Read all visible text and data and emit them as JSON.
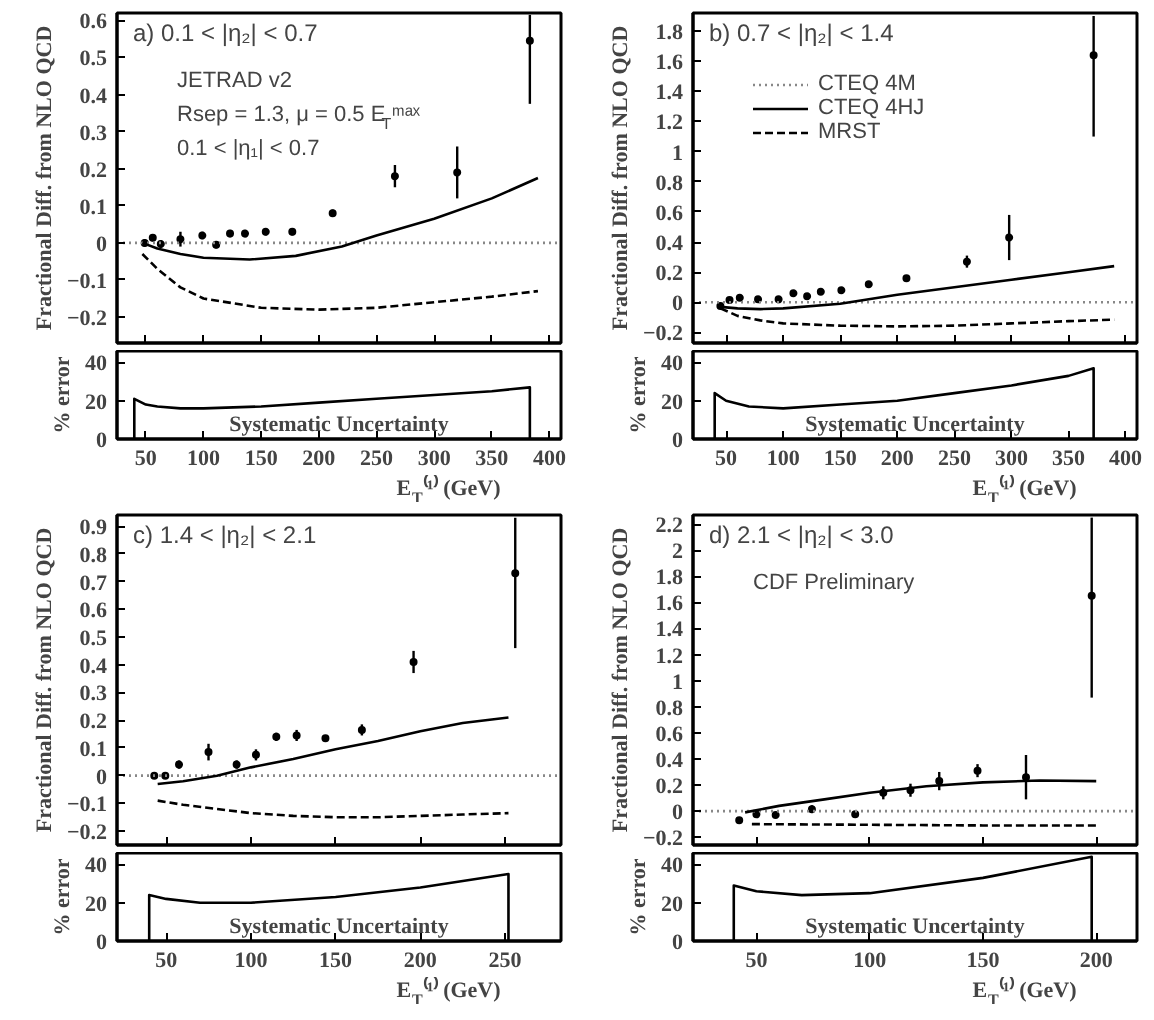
{
  "chart_data": [
    {
      "type": "scatter",
      "ylabel": "Fractional Diff. from NLO QCD",
      "annotations": [
        "a) 0.1 < |η₂| < 0.7",
        "JETRAD v2",
        "Rsep = 1.3, μ = 0.5 E$_{T}$ᵐᵃˣ",
        "0.1 < |η₁| < 0.7"
      ],
      "xlim": [
        25,
        410
      ],
      "ylim": [
        -0.27,
        0.62
      ],
      "xticks": [
        50,
        100,
        150,
        200,
        250,
        300,
        350,
        400
      ],
      "yticks": [
        -0.2,
        -0.1,
        0,
        0.1,
        0.2,
        0.3,
        0.4,
        0.5,
        0.6
      ],
      "tick_labels": "y",
      "legend": false,
      "series": [
        {
          "type": "scatter",
          "color": "#000000",
          "marker": "circle",
          "x": [
            49,
            56,
            63,
            80,
            99,
            111,
            123,
            136,
            154,
            177,
            212,
            266,
            320,
            383
          ],
          "values": [
            0,
            0.014,
            -0.003,
            0.01,
            0.02,
            -0.005,
            0.025,
            0.025,
            0.03,
            0.03,
            0.08,
            0.18,
            0.19,
            0.545
          ],
          "errors": [
            0.01,
            0.01,
            0.01,
            0.02,
            0.01,
            0.01,
            0.01,
            0.01,
            0.01,
            0.01,
            0.01,
            0.03,
            0.07,
            [
              0.375,
              0.615
            ]
          ]
        },
        {
          "type": "line",
          "color": "#888888",
          "line_style": "dotted",
          "x": [
            25,
            410
          ],
          "values": [
            0,
            0
          ]
        },
        {
          "type": "line",
          "color": "#000000",
          "line_style": "solid",
          "x": [
            47,
            60,
            80,
            100,
            140,
            180,
            220,
            250,
            300,
            350,
            390
          ],
          "values": [
            0,
            -0.015,
            -0.03,
            -0.04,
            -0.045,
            -0.035,
            -0.01,
            0.02,
            0.065,
            0.12,
            0.175
          ]
        },
        {
          "type": "line",
          "color": "#000000",
          "line_style": "dashed",
          "x": [
            47,
            60,
            80,
            100,
            150,
            200,
            250,
            300,
            350,
            390
          ],
          "values": [
            -0.03,
            -0.07,
            -0.12,
            -0.15,
            -0.175,
            -0.18,
            -0.175,
            -0.16,
            -0.145,
            -0.13
          ]
        }
      ]
    },
    {
      "type": "line",
      "ylabel": "% error",
      "xlabel": "E$_{T}$⁽¹⁾ (GeV)",
      "annotations": [
        "Systematic Uncertainty"
      ],
      "xlim": [
        25,
        410
      ],
      "ylim": [
        0,
        46
      ],
      "xticks": [
        50,
        100,
        150,
        200,
        250,
        300,
        350,
        400
      ],
      "yticks": [
        0,
        20,
        40
      ],
      "color": "#000000",
      "x": [
        40,
        40,
        50,
        60,
        80,
        100,
        150,
        200,
        250,
        300,
        350,
        383,
        383
      ],
      "values": [
        0,
        21,
        18,
        17,
        16,
        16,
        17,
        19,
        21,
        23,
        25,
        27,
        0
      ]
    },
    {
      "type": "scatter",
      "ylabel": "Fractional Diff. from NLO QCD",
      "annotations": [
        "b) 0.7 < |η₂| < 1.4"
      ],
      "xlim": [
        21,
        410
      ],
      "ylim": [
        -0.27,
        1.92
      ],
      "xticks": [
        50,
        100,
        150,
        200,
        250,
        300,
        350,
        400
      ],
      "yticks": [
        -0.2,
        0,
        0.2,
        0.4,
        0.6,
        0.8,
        1,
        1.2,
        1.4,
        1.6,
        1.8
      ],
      "tick_labels": "y",
      "legend": "top left",
      "series": [
        {
          "type": "scatter",
          "color": "#000000",
          "marker": "circle",
          "x": [
            45,
            53,
            62,
            78,
            96,
            109,
            121,
            133,
            151,
            175,
            208,
            261,
            298,
            372
          ],
          "values": [
            -0.025,
            0.015,
            0.03,
            0.02,
            0.02,
            0.06,
            0.04,
            0.07,
            0.08,
            0.12,
            0.16,
            0.27,
            0.43,
            1.64
          ],
          "errors": [
            0.01,
            0.01,
            0.01,
            0.01,
            0.01,
            0.01,
            0.01,
            0.01,
            0.01,
            0.01,
            0.01,
            0.04,
            0.15,
            [
              1.1,
              1.9
            ]
          ]
        },
        {
          "type": "line",
          "name": "CTEQ 4M",
          "color": "#888888",
          "line_style": "dotted",
          "x": [
            21,
            410
          ],
          "values": [
            0,
            0
          ]
        },
        {
          "type": "line",
          "name": "CTEQ 4HJ",
          "color": "#000000",
          "line_style": "solid",
          "x": [
            45,
            60,
            80,
            100,
            150,
            200,
            250,
            300,
            350,
            390
          ],
          "values": [
            -0.03,
            -0.04,
            -0.045,
            -0.04,
            -0.01,
            0.05,
            0.1,
            0.15,
            0.2,
            0.24
          ]
        },
        {
          "type": "line",
          "name": "MRST",
          "color": "#000000",
          "line_style": "dashed",
          "x": [
            45,
            60,
            80,
            100,
            150,
            200,
            250,
            300,
            350,
            390
          ],
          "values": [
            -0.04,
            -0.09,
            -0.12,
            -0.14,
            -0.155,
            -0.16,
            -0.155,
            -0.14,
            -0.125,
            -0.115
          ]
        }
      ]
    },
    {
      "type": "line",
      "ylabel": "% error",
      "xlabel": "E$_{T}$⁽¹⁾ (GeV)",
      "annotations": [
        "Systematic Uncertainty"
      ],
      "xlim": [
        21,
        410
      ],
      "ylim": [
        0,
        46
      ],
      "xticks": [
        50,
        100,
        150,
        200,
        250,
        300,
        350,
        400
      ],
      "yticks": [
        0,
        20,
        40
      ],
      "color": "#000000",
      "x": [
        40,
        40,
        50,
        70,
        100,
        150,
        200,
        250,
        300,
        350,
        372,
        372
      ],
      "values": [
        0,
        24,
        20,
        17,
        16,
        18,
        20,
        24,
        28,
        33,
        37,
        0
      ]
    },
    {
      "type": "scatter",
      "ylabel": "Fractional Diff. from NLO QCD",
      "annotations": [
        "c) 1.4 < |η₂| < 2.1"
      ],
      "xlim": [
        21,
        283
      ],
      "ylim": [
        -0.25,
        0.94
      ],
      "xticks": [
        50,
        100,
        150,
        200,
        250
      ],
      "yticks": [
        -0.2,
        -0.1,
        0,
        0.1,
        0.2,
        0.3,
        0.4,
        0.5,
        0.6,
        0.7,
        0.8,
        0.9
      ],
      "tick_labels": "y",
      "legend": false,
      "series": [
        {
          "type": "scatter",
          "color": "#000000",
          "marker": "circle",
          "x": [
            43,
            49.5,
            57.6,
            75,
            91.6,
            103,
            115,
            127,
            144,
            165.5,
            196,
            256
          ],
          "values": [
            0,
            0,
            0.04,
            0.085,
            0.04,
            0.075,
            0.14,
            0.145,
            0.135,
            0.165,
            0.41,
            0.73
          ],
          "errors": [
            0.01,
            0.01,
            0.015,
            0.03,
            0.015,
            0.02,
            0.015,
            0.02,
            0.01,
            0.02,
            0.04,
            [
              0.46,
              0.93
            ]
          ]
        },
        {
          "type": "line",
          "color": "#888888",
          "line_style": "dotted",
          "x": [
            21,
            283
          ],
          "values": [
            0,
            0
          ]
        },
        {
          "type": "line",
          "color": "#000000",
          "line_style": "solid",
          "x": [
            45,
            60,
            80,
            100,
            125,
            150,
            175,
            200,
            225,
            252
          ],
          "values": [
            -0.03,
            -0.02,
            0,
            0.03,
            0.06,
            0.095,
            0.125,
            0.16,
            0.19,
            0.21
          ]
        },
        {
          "type": "line",
          "color": "#000000",
          "line_style": "dashed",
          "x": [
            45,
            60,
            80,
            100,
            125,
            150,
            175,
            200,
            225,
            252
          ],
          "values": [
            -0.09,
            -0.105,
            -0.12,
            -0.135,
            -0.145,
            -0.15,
            -0.15,
            -0.145,
            -0.14,
            -0.135
          ]
        }
      ]
    },
    {
      "type": "line",
      "ylabel": "% error",
      "xlabel": "E$_{T}$⁽¹⁾ (GeV)",
      "annotations": [
        "Systematic Uncertainty"
      ],
      "xlim": [
        21,
        283
      ],
      "ylim": [
        0,
        46
      ],
      "xticks": [
        50,
        100,
        150,
        200,
        250
      ],
      "yticks": [
        0,
        20,
        40
      ],
      "color": "#000000",
      "x": [
        40,
        40,
        50,
        70,
        100,
        150,
        200,
        252,
        252
      ],
      "values": [
        0,
        24,
        22,
        20,
        20,
        23,
        28,
        35,
        0
      ]
    },
    {
      "type": "scatter",
      "ylabel": "Fractional Diff. from NLO QCD",
      "annotations": [
        "d) 2.1 < |η₂| < 3.0",
        "CDF Preliminary"
      ],
      "xlim": [
        22,
        218
      ],
      "ylim": [
        -0.26,
        2.27
      ],
      "xticks": [
        50,
        100,
        150,
        200
      ],
      "yticks": [
        -0.2,
        0,
        0.2,
        0.4,
        0.6,
        0.8,
        1,
        1.2,
        1.4,
        1.6,
        1.8,
        2,
        2.2
      ],
      "tick_labels": "y",
      "legend": false,
      "series": [
        {
          "type": "scatter",
          "color": "#000000",
          "marker": "circle",
          "x": [
            42.4,
            50,
            58.5,
            74.5,
            93.6,
            106,
            118,
            130.7,
            147.6,
            169,
            198
          ],
          "values": [
            -0.07,
            -0.025,
            -0.03,
            0.015,
            -0.025,
            0.14,
            0.16,
            0.23,
            0.31,
            0.26,
            1.65
          ],
          "errors": [
            0.01,
            0.02,
            0.02,
            0.03,
            0.02,
            0.05,
            0.05,
            0.07,
            0.05,
            0.17,
            [
              0.87,
              2.25
            ]
          ]
        },
        {
          "type": "line",
          "color": "#888888",
          "line_style": "dotted",
          "x": [
            22,
            218
          ],
          "values": [
            0,
            0
          ]
        },
        {
          "type": "line",
          "color": "#000000",
          "line_style": "solid",
          "x": [
            45,
            60,
            80,
            100,
            125,
            150,
            175,
            200
          ],
          "values": [
            -0.01,
            0.04,
            0.09,
            0.14,
            0.19,
            0.22,
            0.235,
            0.23
          ]
        },
        {
          "type": "line",
          "color": "#000000",
          "line_style": "dashed",
          "x": [
            48,
            100,
            150,
            200
          ],
          "values": [
            -0.1,
            -0.105,
            -0.11,
            -0.11
          ]
        }
      ]
    },
    {
      "type": "line",
      "ylabel": "% error",
      "xlabel": "E$_{T}$⁽¹⁾ (GeV)",
      "annotations": [
        "Systematic Uncertainty"
      ],
      "xlim": [
        22,
        218
      ],
      "ylim": [
        0,
        46
      ],
      "xticks": [
        50,
        100,
        150,
        200
      ],
      "yticks": [
        0,
        20,
        40
      ],
      "color": "#000000",
      "x": [
        40,
        40,
        50,
        70,
        100,
        150,
        198,
        198
      ],
      "values": [
        0,
        29,
        26,
        24,
        25,
        33,
        44,
        0
      ]
    }
  ]
}
